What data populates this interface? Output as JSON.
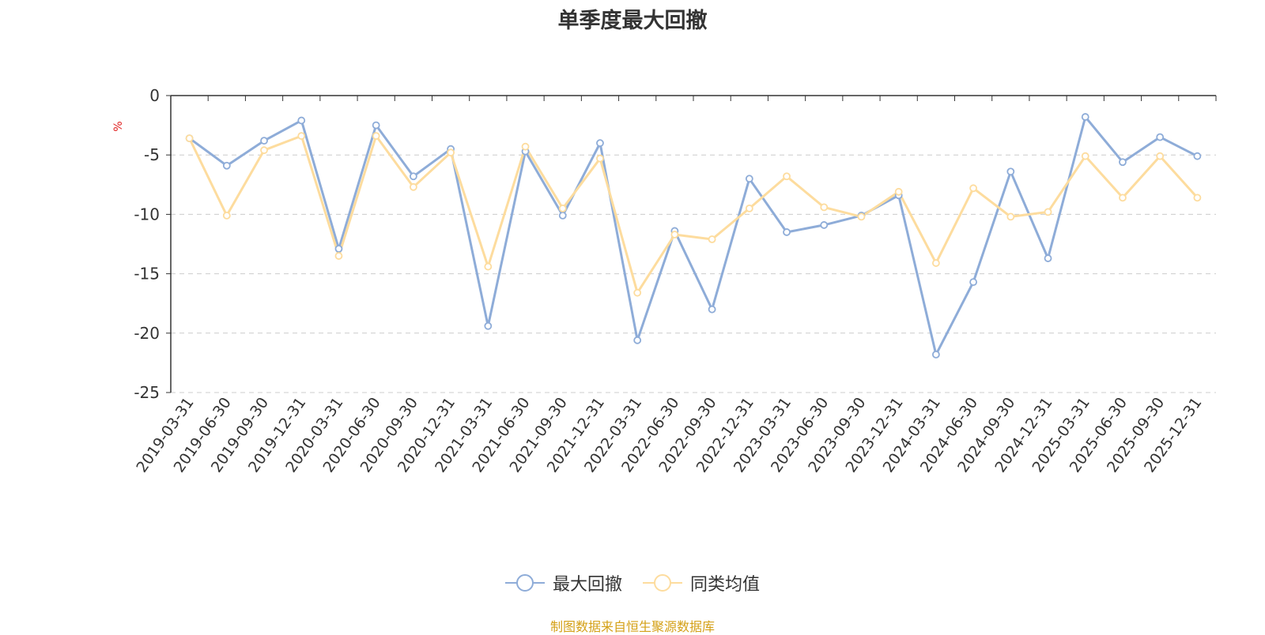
{
  "chart_data": {
    "type": "line",
    "title": "单季度最大回撤",
    "ylabel": "%",
    "xlabel": "",
    "ylim": [
      -25,
      0
    ],
    "yticks": [
      0,
      -5,
      -10,
      -15,
      -20,
      -25
    ],
    "grid": true,
    "legend_position": "bottom",
    "categories": [
      "2019-03-31",
      "2019-06-30",
      "2019-09-30",
      "2019-12-31",
      "2020-03-31",
      "2020-06-30",
      "2020-09-30",
      "2020-12-31",
      "2021-03-31",
      "2021-06-30",
      "2021-09-30",
      "2021-12-31",
      "2022-03-31",
      "2022-06-30",
      "2022-09-30",
      "2022-12-31",
      "2023-03-31",
      "2023-06-30",
      "2023-09-30",
      "2023-12-31",
      "2024-03-31",
      "2024-06-30",
      "2024-09-30",
      "2024-12-31",
      "2025-03-31",
      "2025-06-30",
      "2025-09-30",
      "2025-12-31"
    ],
    "series": [
      {
        "name": "最大回撤",
        "color": "#8eacd8",
        "values": [
          -3.6,
          -5.9,
          -3.8,
          -2.1,
          -12.9,
          -2.5,
          -6.8,
          -4.5,
          -19.4,
          -4.7,
          -10.1,
          -4.0,
          -20.6,
          -11.4,
          -18.0,
          -7.0,
          -11.5,
          -10.9,
          -10.1,
          -8.4,
          -21.8,
          -15.7,
          -6.4,
          -13.7,
          -1.8,
          -5.6,
          -3.5,
          -5.1
        ]
      },
      {
        "name": "同类均值",
        "color": "#fddc9e",
        "values": [
          -3.6,
          -10.1,
          -4.6,
          -3.4,
          -13.5,
          -3.4,
          -7.7,
          -4.8,
          -14.4,
          -4.3,
          -9.5,
          -5.3,
          -16.6,
          -11.7,
          -12.1,
          -9.5,
          -6.8,
          -9.4,
          -10.2,
          -8.1,
          -14.1,
          -7.8,
          -10.2,
          -9.8,
          -5.1,
          -8.6,
          -5.1,
          -8.6
        ]
      }
    ]
  },
  "source_text": "制图数据来自恒生聚源数据库"
}
